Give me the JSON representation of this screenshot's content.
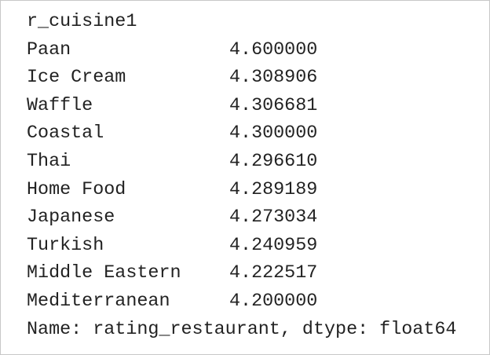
{
  "output": {
    "header": "r_cuisine1",
    "rows": [
      [
        "Paan",
        "4.600000"
      ],
      [
        "Ice Cream",
        "4.308906"
      ],
      [
        "Waffle",
        "4.306681"
      ],
      [
        "Coastal",
        "4.300000"
      ],
      [
        "Thai",
        "4.296610"
      ],
      [
        "Home Food",
        "4.289189"
      ],
      [
        "Japanese",
        "4.273034"
      ],
      [
        "Turkish",
        "4.240959"
      ],
      [
        "Middle Eastern",
        "4.222517"
      ],
      [
        "Mediterranean",
        "4.200000"
      ]
    ],
    "footer": "Name: rating_restaurant, dtype: float64"
  }
}
